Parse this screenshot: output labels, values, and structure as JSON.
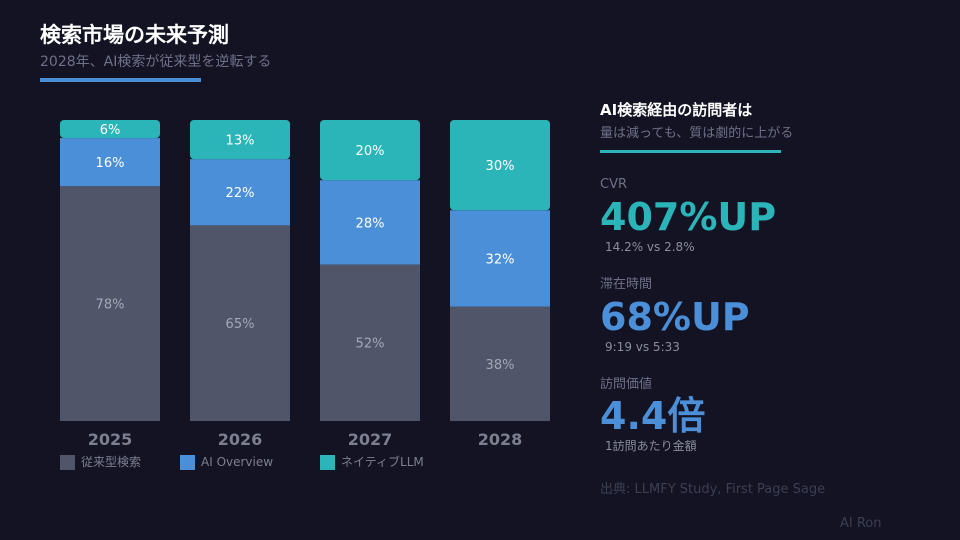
{
  "header": {
    "title": "検索市場の未来予測",
    "subtitle": "2028年、AI検索が従来型を逆転する"
  },
  "chart_data": {
    "type": "bar",
    "stacked": true,
    "categories": [
      "2025",
      "2026",
      "2027",
      "2028"
    ],
    "series": [
      {
        "name": "従来型検索",
        "values": [
          78,
          65,
          52,
          38
        ],
        "color": "#505569"
      },
      {
        "name": "AI Overview",
        "values": [
          16,
          22,
          28,
          32
        ],
        "color": "#4a8fd8"
      },
      {
        "name": "ネイティブLLM",
        "values": [
          6,
          13,
          20,
          30
        ],
        "color": "#2cb5b9"
      }
    ],
    "ylim": [
      0,
      100
    ],
    "data_label_suffix": "%",
    "grid": false,
    "legend": "bottom-left"
  },
  "panel": {
    "title": "AI検索経由の訪問者は",
    "subtitle": "量は減っても、質は劇的に上がる",
    "kpis": [
      {
        "label": "CVR",
        "value": "407%UP",
        "note": "14.2% vs 2.8%",
        "color": "#2cb5b9"
      },
      {
        "label": "滞在時間",
        "value": "68%UP",
        "note": "9:19 vs 5:33",
        "color": "#4a8fd8"
      },
      {
        "label": "訪問価値",
        "value": "4.4倍",
        "note": "1訪問あたり金額",
        "color": "#4a8fd8"
      }
    ],
    "source": "出典: LLMFY Study, First Page Sage",
    "author": "AI Ron"
  }
}
